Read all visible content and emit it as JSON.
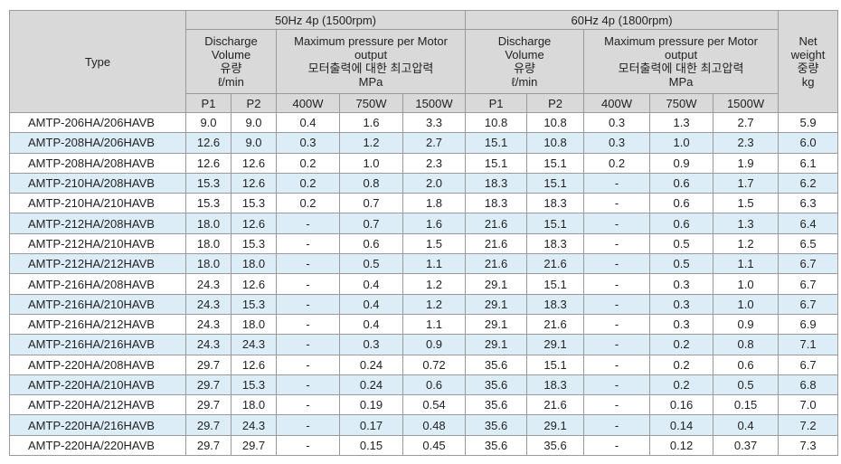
{
  "header": {
    "type": "Type",
    "groups": [
      {
        "title": "50Hz 4p (1500rpm)",
        "discharge": [
          "Discharge",
          "Volume",
          "유량",
          "ℓ/min"
        ],
        "pressure": [
          "Maximum pressure per Motor",
          "output",
          "모터출력에 대한 최고압력",
          "MPa"
        ],
        "flow_columns": [
          "P1",
          "P2"
        ],
        "power_columns": [
          "400W",
          "750W",
          "1500W"
        ]
      },
      {
        "title": "60Hz 4p (1800rpm)",
        "discharge": [
          "Discharge",
          "Volume",
          "유량",
          "ℓ/min"
        ],
        "pressure": [
          "Maximum pressure per Motor",
          "output",
          "모터출력에 대한 최고압력",
          "MPa"
        ],
        "flow_columns": [
          "P1",
          "P2"
        ],
        "power_columns": [
          "400W",
          "750W",
          "1500W"
        ]
      }
    ],
    "net_weight": [
      "Net",
      "weight",
      "중량",
      "kg"
    ]
  },
  "rows": [
    [
      "AMTP-206HA/206HAVB",
      "9.0",
      "9.0",
      "0.4",
      "1.6",
      "3.3",
      "10.8",
      "10.8",
      "0.3",
      "1.3",
      "2.7",
      "5.9"
    ],
    [
      "AMTP-208HA/206HAVB",
      "12.6",
      "9.0",
      "0.3",
      "1.2",
      "2.7",
      "15.1",
      "10.8",
      "0.3",
      "1.0",
      "2.3",
      "6.0"
    ],
    [
      "AMTP-208HA/208HAVB",
      "12.6",
      "12.6",
      "0.2",
      "1.0",
      "2.3",
      "15.1",
      "15.1",
      "0.2",
      "0.9",
      "1.9",
      "6.1"
    ],
    [
      "AMTP-210HA/208HAVB",
      "15.3",
      "12.6",
      "0.2",
      "0.8",
      "2.0",
      "18.3",
      "15.1",
      "-",
      "0.6",
      "1.7",
      "6.2"
    ],
    [
      "AMTP-210HA/210HAVB",
      "15.3",
      "15.3",
      "0.2",
      "0.7",
      "1.8",
      "18.3",
      "18.3",
      "-",
      "0.6",
      "1.5",
      "6.3"
    ],
    [
      "AMTP-212HA/208HAVB",
      "18.0",
      "12.6",
      "-",
      "0.7",
      "1.6",
      "21.6",
      "15.1",
      "-",
      "0.6",
      "1.3",
      "6.4"
    ],
    [
      "AMTP-212HA/210HAVB",
      "18.0",
      "15.3",
      "-",
      "0.6",
      "1.5",
      "21.6",
      "18.3",
      "-",
      "0.5",
      "1.2",
      "6.5"
    ],
    [
      "AMTP-212HA/212HAVB",
      "18.0",
      "18.0",
      "-",
      "0.5",
      "1.1",
      "21.6",
      "21.6",
      "-",
      "0.5",
      "1.1",
      "6.7"
    ],
    [
      "AMTP-216HA/208HAVB",
      "24.3",
      "12.6",
      "-",
      "0.4",
      "1.2",
      "29.1",
      "15.1",
      "-",
      "0.3",
      "1.0",
      "6.7"
    ],
    [
      "AMTP-216HA/210HAVB",
      "24.3",
      "15.3",
      "-",
      "0.4",
      "1.2",
      "29.1",
      "18.3",
      "-",
      "0.3",
      "1.0",
      "6.7"
    ],
    [
      "AMTP-216HA/212HAVB",
      "24.3",
      "18.0",
      "-",
      "0.4",
      "1.1",
      "29.1",
      "21.6",
      "-",
      "0.3",
      "0.9",
      "6.9"
    ],
    [
      "AMTP-216HA/216HAVB",
      "24.3",
      "24.3",
      "-",
      "0.3",
      "0.9",
      "29.1",
      "29.1",
      "-",
      "0.2",
      "0.8",
      "7.1"
    ],
    [
      "AMTP-220HA/208HAVB",
      "29.7",
      "12.6",
      "-",
      "0.24",
      "0.72",
      "35.6",
      "15.1",
      "-",
      "0.2",
      "0.6",
      "6.7"
    ],
    [
      "AMTP-220HA/210HAVB",
      "29.7",
      "15.3",
      "-",
      "0.24",
      "0.6",
      "35.6",
      "18.3",
      "-",
      "0.2",
      "0.5",
      "6.8"
    ],
    [
      "AMTP-220HA/212HAVB",
      "29.7",
      "18.0",
      "-",
      "0.19",
      "0.54",
      "35.6",
      "21.6",
      "-",
      "0.16",
      "0.15",
      "7.0"
    ],
    [
      "AMTP-220HA/216HAVB",
      "29.7",
      "24.3",
      "-",
      "0.17",
      "0.48",
      "35.6",
      "29.1",
      "-",
      "0.14",
      "0.4",
      "7.2"
    ],
    [
      "AMTP-220HA/220HAVB",
      "29.7",
      "29.7",
      "-",
      "0.15",
      "0.45",
      "35.6",
      "35.6",
      "-",
      "0.12",
      "0.37",
      "7.3"
    ]
  ]
}
